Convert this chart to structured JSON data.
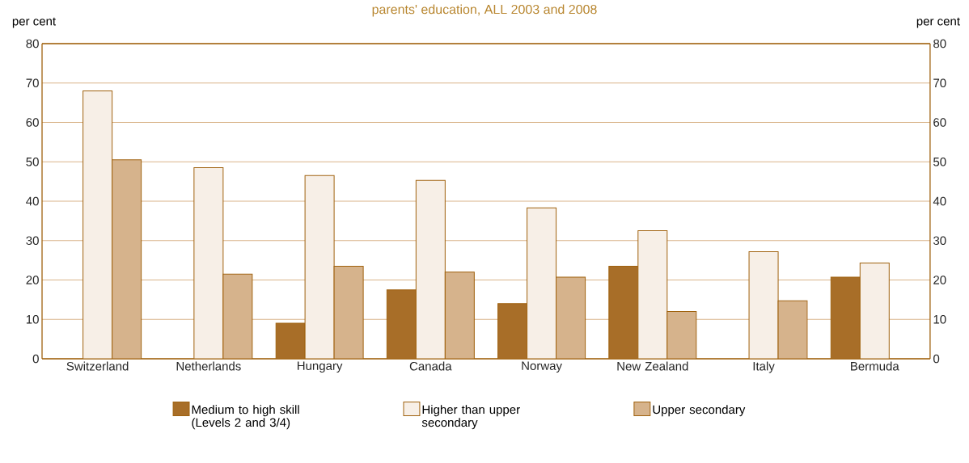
{
  "chart_data": {
    "type": "bar",
    "title": "parents' education, ALL 2003 and 2008",
    "ylabel": "per cent",
    "y2label": "per cent",
    "categories": [
      "Switzerland",
      "Netherlands",
      "Hungary",
      "Canada",
      "Norway",
      "New Zealand",
      "Italy",
      "Bermuda"
    ],
    "series": [
      {
        "name": "Medium to high skill (Levels 2 and 3/4)",
        "color": "#a86e28",
        "values": [
          null,
          null,
          9,
          17.5,
          14,
          23.5,
          null,
          20.7
        ]
      },
      {
        "name": "Higher than upper secondary",
        "color": "#f7efe7",
        "values": [
          68,
          48.5,
          46.5,
          45.3,
          38.3,
          32.5,
          27.2,
          24.3
        ]
      },
      {
        "name": "Upper secondary",
        "color": "#d6b38c",
        "values": [
          50.5,
          21.5,
          23.5,
          22,
          20.7,
          12,
          14.7,
          null
        ]
      }
    ],
    "ylim": [
      0,
      80
    ],
    "yticks": [
      0,
      10,
      20,
      30,
      40,
      50,
      60,
      70,
      80
    ],
    "y2lim": [
      0,
      80
    ],
    "y2ticks": [
      0,
      10,
      20,
      30,
      40,
      50,
      60,
      70,
      80
    ],
    "grid": "y",
    "legend": "bottom"
  }
}
